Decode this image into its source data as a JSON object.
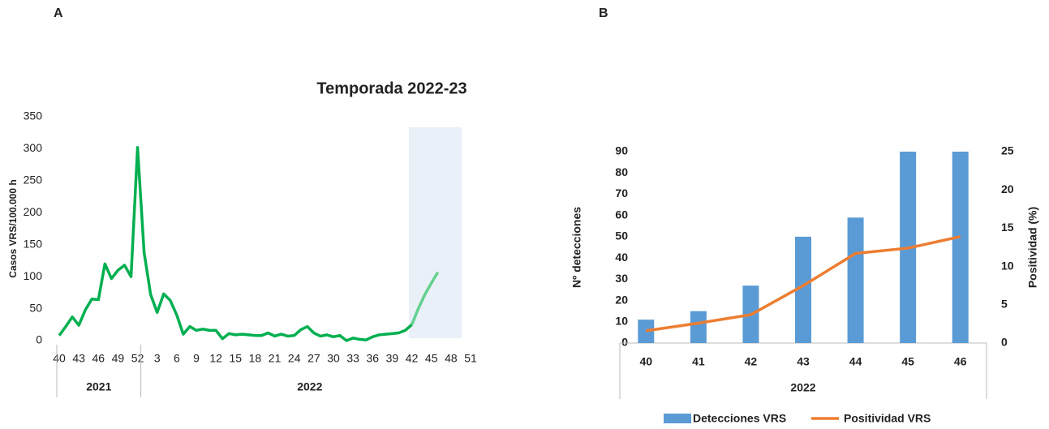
{
  "chart_data": [
    {
      "type": "line",
      "label": "A",
      "title": "Temporada 2022-23",
      "y_label": "Casos VRS/100.000 h",
      "categories": [
        "40",
        null,
        null,
        "43",
        null,
        null,
        "46",
        null,
        null,
        "49",
        null,
        null,
        "52",
        null,
        null,
        "3",
        null,
        null,
        "6",
        null,
        null,
        "9",
        null,
        null,
        "12",
        null,
        null,
        "15",
        null,
        null,
        "18",
        null,
        null,
        "21",
        null,
        null,
        "24",
        null,
        null,
        "27",
        null,
        null,
        "30",
        null,
        null,
        "33",
        null,
        null,
        "36",
        null,
        null,
        "39",
        null,
        null,
        "42",
        null,
        null,
        "45",
        null,
        null,
        "48",
        null,
        null,
        "51"
      ],
      "groups": [
        "2021",
        "2022"
      ],
      "series": [
        {
          "color": "#00b050",
          "values": [
            8,
            22,
            37,
            24,
            48,
            65,
            64,
            120,
            97,
            110,
            118,
            100,
            302,
            138,
            72,
            44,
            73,
            63,
            40,
            10,
            22,
            16,
            18,
            16,
            16,
            3,
            11,
            9,
            10,
            9,
            8,
            8,
            12,
            7,
            10,
            7,
            8,
            17,
            22,
            12,
            7,
            9,
            6,
            8,
            0,
            4,
            2,
            1,
            6,
            9,
            10,
            11,
            12,
            16,
            25,
            null,
            null,
            null,
            null,
            null,
            null,
            null,
            null,
            null
          ]
        },
        {
          "color": "#63d18f",
          "values": [
            null,
            null,
            null,
            null,
            null,
            null,
            null,
            null,
            null,
            null,
            null,
            null,
            null,
            null,
            null,
            null,
            null,
            null,
            null,
            null,
            null,
            null,
            null,
            null,
            null,
            null,
            null,
            null,
            null,
            null,
            null,
            null,
            null,
            null,
            null,
            null,
            null,
            null,
            null,
            null,
            null,
            null,
            null,
            null,
            null,
            null,
            null,
            null,
            null,
            null,
            null,
            null,
            null,
            null,
            25,
            50,
            72,
            90,
            107,
            null,
            null,
            null,
            null,
            null
          ]
        }
      ],
      "ylim": [
        0,
        350
      ],
      "yticks": [
        0,
        50,
        100,
        150,
        200,
        250,
        300,
        350
      ],
      "grid": false
    },
    {
      "type": "combo",
      "label": "B",
      "y_label": "Nº detecciones",
      "y2_label": "Positividad (%)",
      "categories": [
        "40",
        "41",
        "42",
        "43",
        "44",
        "45",
        "46"
      ],
      "groups": [
        "2022"
      ],
      "series": [
        {
          "name": "Detecciones VRS",
          "kind": "bar",
          "color": "#5b9bd5",
          "values": [
            11,
            15,
            27,
            50,
            59,
            90,
            90
          ]
        },
        {
          "name": "Positividad VRS",
          "kind": "line",
          "axis": "y2",
          "color": "#ed7d31",
          "values": [
            1.6,
            2.6,
            3.7,
            7.5,
            11.7,
            12.4,
            13.9
          ]
        }
      ],
      "ylim": [
        0,
        90
      ],
      "yticks": [
        0,
        10,
        20,
        30,
        40,
        50,
        60,
        70,
        80,
        90
      ],
      "y2lim": [
        0,
        25
      ],
      "y2ticks": [
        0,
        5,
        10,
        15,
        20,
        25
      ],
      "legend": "bottom"
    }
  ]
}
